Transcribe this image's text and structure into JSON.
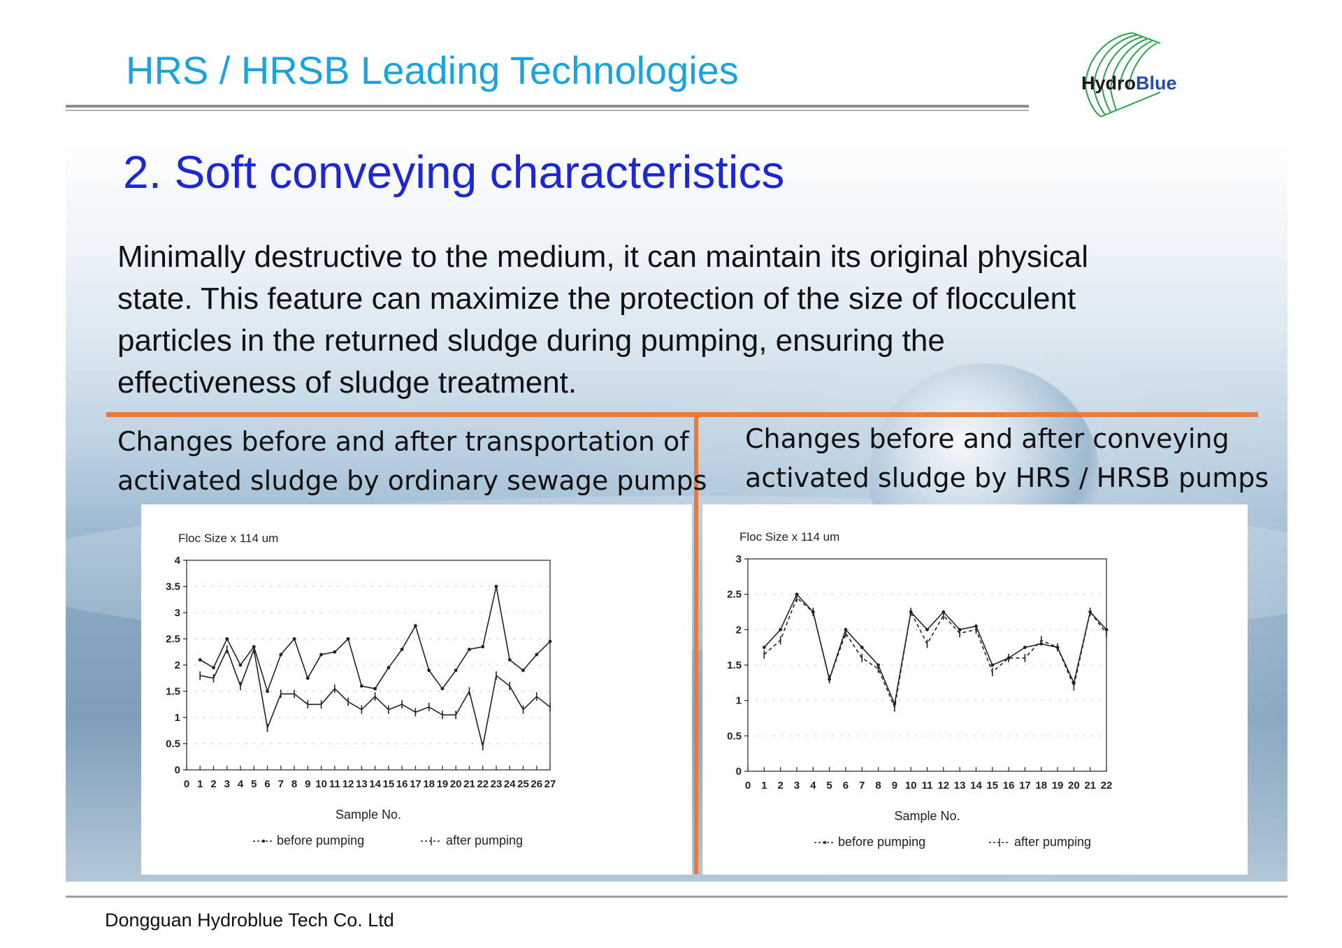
{
  "header": {
    "title": "HRS / HRSB Leading Technologies",
    "logo_text_dark": "Hydro",
    "logo_text_blue": "Blue",
    "logo_color": "#2aa148"
  },
  "slide": {
    "section_title": "2. Soft conveying characteristics",
    "body": [
      "Minimally destructive to the medium, it can maintain its original physical",
      "state. This feature can maximize the protection of the size of flocculent",
      "particles in the returned sludge during pumping, ensuring the",
      "effectiveness of sludge treatment."
    ],
    "caption_left": [
      "Changes before and after transportation of",
      "activated sludge by ordinary sewage pumps"
    ],
    "caption_right": [
      "Changes before and after conveying",
      "activated sludge by HRS / HRSB pumps"
    ],
    "accent_color": "#ea7a3a",
    "title_color": "#1c27d6",
    "header_color": "#1aa3dc"
  },
  "footer": {
    "company": "Dongguan Hydroblue Tech Co. Ltd"
  },
  "chart_data": [
    {
      "type": "line",
      "ylabel": "Floc Size x 114 um",
      "xlabel": "Sample No.",
      "ylim": [
        0,
        4
      ],
      "yticks": [
        "0",
        "0.5",
        "1",
        "1.5",
        "2",
        "2.5",
        "3",
        "3.5",
        "4"
      ],
      "x": [
        1,
        2,
        3,
        4,
        5,
        6,
        7,
        8,
        9,
        10,
        11,
        12,
        13,
        14,
        15,
        16,
        17,
        18,
        19,
        20,
        21,
        22,
        23,
        24,
        25,
        26,
        27
      ],
      "xticks": [
        "0",
        "1",
        "2",
        "3",
        "4",
        "5",
        "6",
        "7",
        "8",
        "9",
        "10",
        "11",
        "12",
        "13",
        "14",
        "15",
        "16",
        "17",
        "18",
        "19",
        "20",
        "21",
        "22",
        "23",
        "24",
        "25",
        "26",
        "27"
      ],
      "grid": true,
      "legend": "bottom",
      "series": [
        {
          "name": "before pumping",
          "values": [
            2.1,
            1.95,
            2.5,
            2.0,
            2.35,
            1.5,
            2.2,
            2.5,
            1.75,
            2.2,
            2.25,
            2.5,
            1.6,
            1.55,
            1.95,
            2.3,
            2.75,
            1.9,
            1.55,
            1.9,
            2.3,
            2.35,
            3.5,
            2.1,
            1.9,
            2.2,
            2.45
          ]
        },
        {
          "name": "after pumping",
          "values": [
            1.8,
            1.75,
            2.3,
            1.6,
            2.3,
            0.8,
            1.45,
            1.45,
            1.25,
            1.25,
            1.55,
            1.3,
            1.15,
            1.4,
            1.15,
            1.25,
            1.1,
            1.2,
            1.05,
            1.05,
            1.5,
            0.45,
            1.8,
            1.6,
            1.15,
            1.4,
            1.2
          ]
        }
      ]
    },
    {
      "type": "line",
      "ylabel": "Floc Size x 114 um",
      "xlabel": "Sample No.",
      "ylim": [
        0,
        3
      ],
      "yticks": [
        "0",
        "0.5",
        "1",
        "1.5",
        "2",
        "2.5",
        "3"
      ],
      "x": [
        1,
        2,
        3,
        4,
        5,
        6,
        7,
        8,
        9,
        10,
        11,
        12,
        13,
        14,
        15,
        16,
        17,
        18,
        19,
        20,
        21,
        22
      ],
      "xticks": [
        "0",
        "1",
        "2",
        "3",
        "4",
        "5",
        "6",
        "7",
        "8",
        "9",
        "10",
        "11",
        "12",
        "13",
        "14",
        "15",
        "16",
        "17",
        "18",
        "19",
        "20",
        "21",
        "22"
      ],
      "grid": true,
      "legend": "bottom",
      "series": [
        {
          "name": "before pumping",
          "values": [
            1.75,
            2.0,
            2.5,
            2.25,
            1.3,
            2.0,
            1.75,
            1.5,
            0.95,
            2.25,
            2.0,
            2.25,
            2.0,
            2.05,
            1.5,
            1.6,
            1.75,
            1.8,
            1.75,
            1.25,
            2.25,
            2.0
          ]
        },
        {
          "name": "after pumping",
          "values": [
            1.65,
            1.85,
            2.45,
            2.25,
            1.3,
            1.95,
            1.6,
            1.45,
            0.9,
            2.25,
            1.8,
            2.2,
            1.95,
            2.0,
            1.4,
            1.6,
            1.6,
            1.85,
            1.75,
            1.2,
            2.25,
            1.95
          ]
        }
      ]
    }
  ]
}
